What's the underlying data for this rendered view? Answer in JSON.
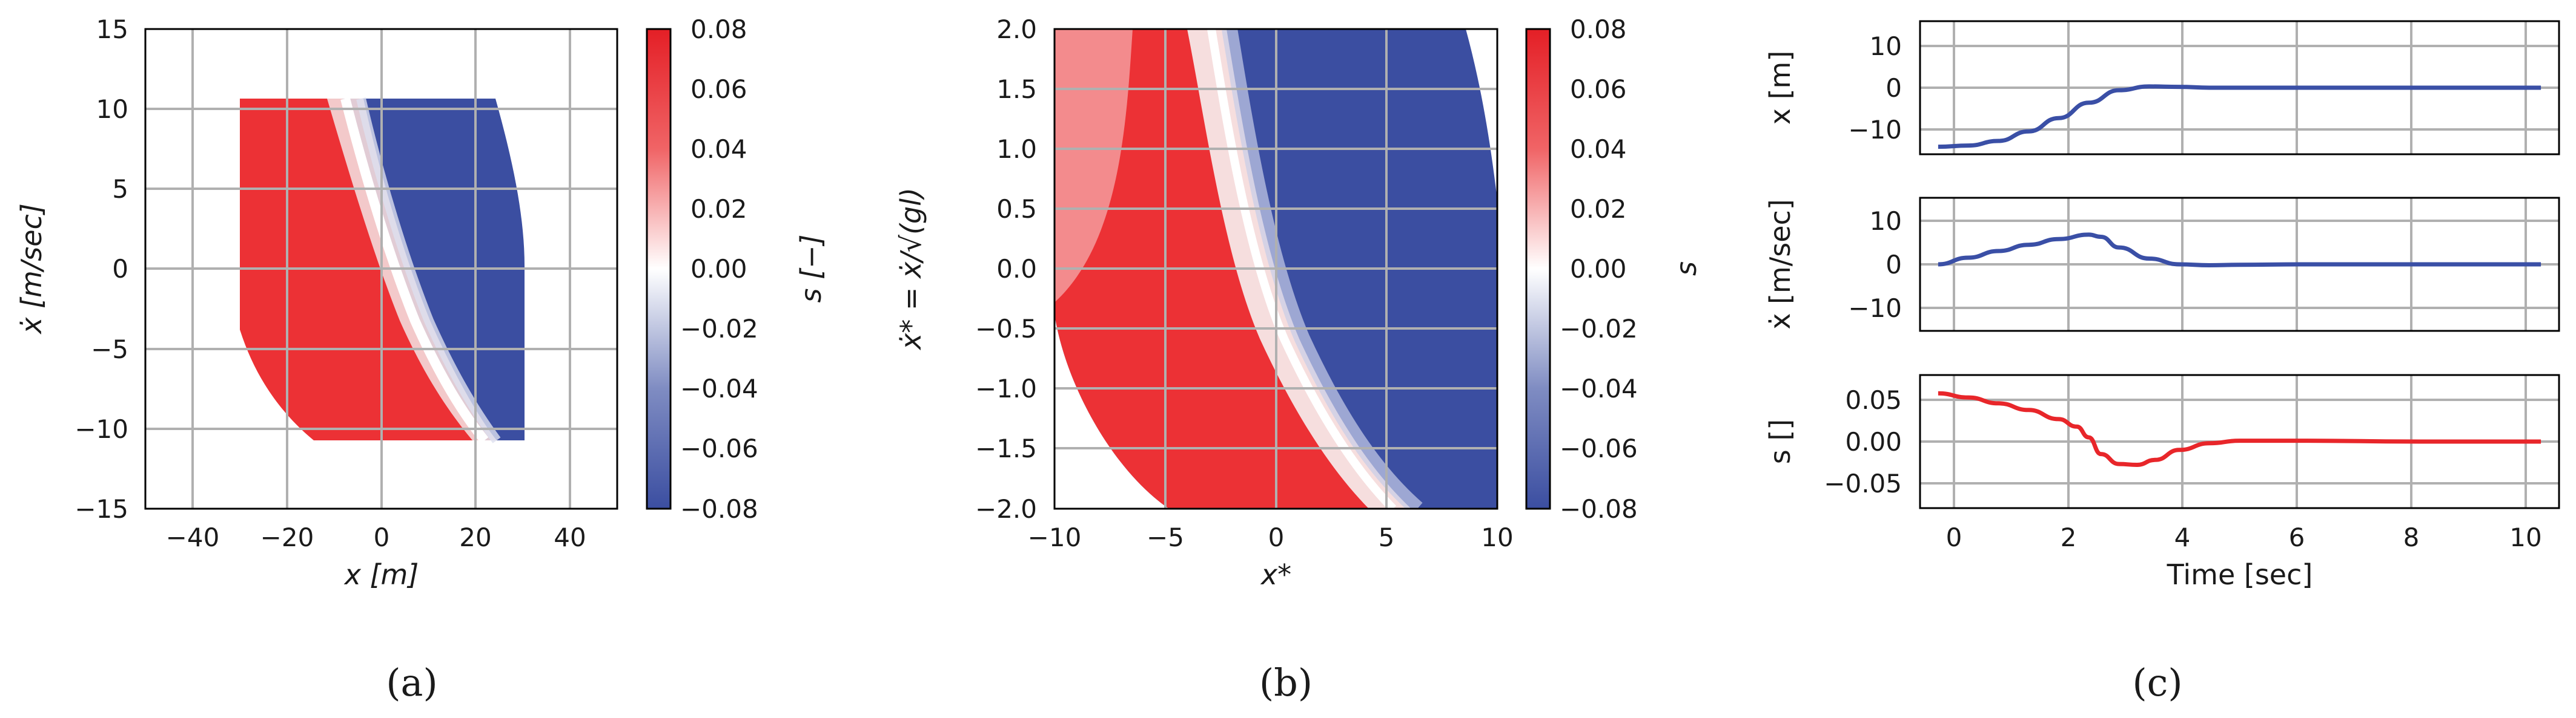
{
  "colors": {
    "positive_red": "#ef2b2d",
    "negative_blue": "#3b4ea1",
    "center_white": "#ffffff",
    "grid": "#b0b0b0",
    "line_blue": "#3a4fa6",
    "line_red": "#e8262a"
  },
  "panel_labels": [
    "(a)",
    "(b)",
    "(c)"
  ],
  "chart_data": [
    {
      "id": "a",
      "type": "heatmap",
      "xlabel": "x [m]",
      "ylabel": "ẋ [m/sec]",
      "xlim": [
        -50,
        50
      ],
      "ylim": [
        -15,
        15
      ],
      "xticks": [
        "−40",
        "−20",
        "0",
        "20",
        "40"
      ],
      "yticks": [
        "−15",
        "−10",
        "−5",
        "0",
        "5",
        "10",
        "15"
      ],
      "grid": true,
      "colorbar": {
        "label": "s [−]",
        "range": [
          -0.08,
          0.08
        ],
        "ticks": [
          "0.08",
          "0.06",
          "0.04",
          "0.02",
          "0.00",
          "−0.02",
          "−0.04",
          "−0.06",
          "−0.08"
        ],
        "colormap": "bwr"
      },
      "field": {
        "region": "x in [-30, 30], ẋ in [-10.8, 10.8], bounded by circle of radius ~30 (center x=0, ẋ=0 scaled)",
        "zero_line": "s = 0 along x ≈ -8 at ẋ=10.8 through x ≈ 0 at ẋ=0 to x ≈ 18 at ẋ=-10.8",
        "left_of_zero": "positive (red)",
        "right_of_zero": "negative (blue)"
      }
    },
    {
      "id": "b",
      "type": "heatmap",
      "xlabel": "x*",
      "ylabel": "ẋ* = ẋ/√(gl)",
      "xlim": [
        -10,
        10
      ],
      "ylim": [
        -2,
        2
      ],
      "xticks": [
        "−10",
        "−5",
        "0",
        "5",
        "10"
      ],
      "yticks": [
        "2.0",
        "1.5",
        "1.0",
        "0.5",
        "0.0",
        "−0.5",
        "−1.0",
        "−1.5",
        "−2.0"
      ],
      "grid": true,
      "colorbar": {
        "label": "s",
        "range": [
          -0.08,
          0.08
        ],
        "ticks": [
          "0.08",
          "0.06",
          "0.04",
          "0.02",
          "0.00",
          "−0.02",
          "−0.04",
          "−0.06",
          "−0.08"
        ],
        "colormap": "bwr"
      },
      "field": {
        "zero_line": "s = 0 along x* ≈ -2.5 at ẋ*=2 to x* ≈ 3 at ẋ*=-2",
        "left_of_zero": "positive (red)",
        "right_of_zero": "negative (blue)"
      }
    },
    {
      "id": "c",
      "type": "line",
      "xlabel": "Time [sec]",
      "xlim": [
        -0.3,
        10.3
      ],
      "xticks": [
        "0",
        "2",
        "4",
        "6",
        "8",
        "10"
      ],
      "grid": true,
      "subplots": [
        {
          "ylabel": "x [m]",
          "ylim": [
            -16,
            16
          ],
          "yticks": [
            "10",
            "0",
            "−10"
          ],
          "series": [
            {
              "color": "#3a4fa6",
              "x": [
                0,
                0.5,
                1,
                1.5,
                2,
                2.5,
                3,
                3.5,
                4,
                4.5,
                5,
                6,
                7,
                8,
                9,
                10
              ],
              "y": [
                -14.2,
                -13.9,
                -12.8,
                -10.5,
                -7.3,
                -3.6,
                -0.6,
                0.3,
                0.2,
                0.0,
                0.0,
                0.0,
                0.0,
                0.0,
                0.0,
                0.0
              ]
            }
          ]
        },
        {
          "ylabel": "ẋ [m/sec]",
          "ylim": [
            -15,
            15
          ],
          "yticks": [
            "10",
            "0",
            "−10"
          ],
          "series": [
            {
              "color": "#3a4fa6",
              "x": [
                0,
                0.5,
                1,
                1.5,
                2,
                2.5,
                2.7,
                3,
                3.5,
                4,
                4.5,
                5,
                6,
                8,
                10
              ],
              "y": [
                0,
                1.5,
                3.0,
                4.4,
                5.7,
                6.7,
                6.2,
                3.8,
                1.3,
                0.0,
                -0.2,
                -0.1,
                0,
                0,
                0
              ]
            }
          ]
        },
        {
          "ylabel": "s []",
          "ylim": [
            -0.08,
            0.08
          ],
          "yticks": [
            "0.05",
            "0.00",
            "−0.05"
          ],
          "series": [
            {
              "color": "#e8262a",
              "x": [
                0,
                0.5,
                1,
                1.5,
                2,
                2.3,
                2.5,
                2.7,
                3,
                3.3,
                3.6,
                4,
                4.5,
                5,
                6,
                8,
                10
              ],
              "y": [
                0.058,
                0.053,
                0.046,
                0.038,
                0.027,
                0.018,
                0.005,
                -0.015,
                -0.027,
                -0.028,
                -0.022,
                -0.01,
                -0.002,
                0.001,
                0.001,
                0.0,
                0.0
              ]
            }
          ]
        }
      ]
    }
  ]
}
